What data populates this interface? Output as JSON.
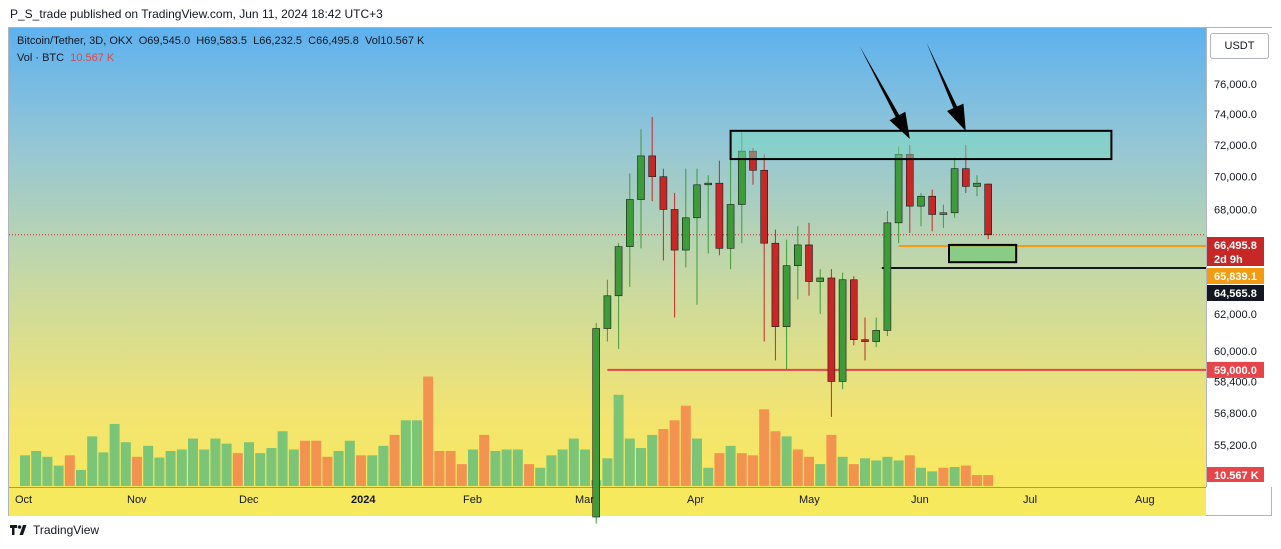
{
  "publisher": "P_S_trade published on TradingView.com, Jun 11, 2024 18:42 UTC+3",
  "legend": {
    "symbol": "Bitcoin/Tether, 3D, OKX",
    "open": "O69,545.0",
    "high": "H69,583.5",
    "low": "L66,232.5",
    "close": "C66,495.8",
    "vol": "Vol10.567 K",
    "vol_label": "Vol · BTC",
    "vol_value": "10.567 K"
  },
  "currency": "USDT",
  "brand": "TradingView",
  "colors": {
    "up": "#3e9b3a",
    "down": "#c62828",
    "vol_up": "#7cc576",
    "vol_down": "#f2934f",
    "vol_top": "#f08c3c",
    "level_red": "#e8454a",
    "level_orange": "#f39c12"
  },
  "chart_data": {
    "type": "candlestick",
    "y_scale": "log",
    "ylim": [
      54000,
      79000
    ],
    "y_ticks": [
      {
        "v": 76000,
        "label": "76,000.0"
      },
      {
        "v": 74000,
        "label": "74,000.0"
      },
      {
        "v": 72000,
        "label": "72,000.0"
      },
      {
        "v": 70000,
        "label": "70,000.0"
      },
      {
        "v": 68000,
        "label": "68,000.0"
      },
      {
        "v": 62000,
        "label": "62,000.0"
      },
      {
        "v": 60000,
        "label": "60,000.0"
      },
      {
        "v": 58400,
        "label": "58,400.0"
      },
      {
        "v": 56800,
        "label": "56,800.0"
      },
      {
        "v": 55200,
        "label": "55,200.0"
      }
    ],
    "x_ticks": [
      {
        "i": 0,
        "label": "Oct"
      },
      {
        "i": 10,
        "label": "Nov"
      },
      {
        "i": 20,
        "label": "Dec"
      },
      {
        "i": 30,
        "label": "2024"
      },
      {
        "i": 40,
        "label": "Feb"
      },
      {
        "i": 50,
        "label": "Mar"
      },
      {
        "i": 60,
        "label": "Apr"
      },
      {
        "i": 70,
        "label": "May"
      },
      {
        "i": 80,
        "label": "Jun"
      },
      {
        "i": 90,
        "label": "Jul"
      },
      {
        "i": 100,
        "label": "Aug"
      }
    ],
    "candles": [
      {
        "i": 51,
        "o": 51800,
        "h": 61500,
        "l": 51500,
        "c": 61200
      },
      {
        "i": 52,
        "o": 61200,
        "h": 63900,
        "l": 60500,
        "c": 63000
      },
      {
        "i": 53,
        "o": 63000,
        "h": 66000,
        "l": 60100,
        "c": 65800
      },
      {
        "i": 54,
        "o": 65800,
        "h": 70200,
        "l": 63500,
        "c": 68600
      },
      {
        "i": 55,
        "o": 68600,
        "h": 73000,
        "l": 65700,
        "c": 71300
      },
      {
        "i": 56,
        "o": 71300,
        "h": 73800,
        "l": 68500,
        "c": 70000
      },
      {
        "i": 57,
        "o": 70000,
        "h": 70500,
        "l": 65000,
        "c": 68000
      },
      {
        "i": 58,
        "o": 68000,
        "h": 69000,
        "l": 61800,
        "c": 65600
      },
      {
        "i": 59,
        "o": 65600,
        "h": 70500,
        "l": 64600,
        "c": 67500
      },
      {
        "i": 60,
        "o": 67500,
        "h": 70500,
        "l": 62500,
        "c": 69500
      },
      {
        "i": 61,
        "o": 69500,
        "h": 70100,
        "l": 65400,
        "c": 69600
      },
      {
        "i": 62,
        "o": 69600,
        "h": 71000,
        "l": 65300,
        "c": 65700
      },
      {
        "i": 63,
        "o": 65700,
        "h": 72000,
        "l": 64500,
        "c": 68300
      },
      {
        "i": 64,
        "o": 68300,
        "h": 72800,
        "l": 66000,
        "c": 71600
      },
      {
        "i": 65,
        "o": 71600,
        "h": 71800,
        "l": 69500,
        "c": 70400
      },
      {
        "i": 66,
        "o": 70400,
        "h": 71400,
        "l": 60500,
        "c": 66000
      },
      {
        "i": 67,
        "o": 66000,
        "h": 66800,
        "l": 59500,
        "c": 61300
      },
      {
        "i": 68,
        "o": 61300,
        "h": 66200,
        "l": 59000,
        "c": 64700
      },
      {
        "i": 69,
        "o": 64700,
        "h": 67000,
        "l": 62800,
        "c": 65900
      },
      {
        "i": 70,
        "o": 65900,
        "h": 67200,
        "l": 63000,
        "c": 63800
      },
      {
        "i": 71,
        "o": 63800,
        "h": 64500,
        "l": 62000,
        "c": 64000
      },
      {
        "i": 72,
        "o": 64000,
        "h": 64500,
        "l": 56600,
        "c": 58400
      },
      {
        "i": 73,
        "o": 58400,
        "h": 64300,
        "l": 58000,
        "c": 63900
      },
      {
        "i": 74,
        "o": 63900,
        "h": 64100,
        "l": 60300,
        "c": 60600
      },
      {
        "i": 75,
        "o": 60600,
        "h": 61800,
        "l": 59500,
        "c": 60500
      },
      {
        "i": 76,
        "o": 60500,
        "h": 61800,
        "l": 60200,
        "c": 61100
      },
      {
        "i": 77,
        "o": 61100,
        "h": 67900,
        "l": 60800,
        "c": 67200
      },
      {
        "i": 78,
        "o": 67200,
        "h": 71900,
        "l": 66000,
        "c": 71400
      },
      {
        "i": 79,
        "o": 71400,
        "h": 72000,
        "l": 66600,
        "c": 68200
      },
      {
        "i": 80,
        "o": 68200,
        "h": 69000,
        "l": 67000,
        "c": 68800
      },
      {
        "i": 81,
        "o": 68800,
        "h": 69200,
        "l": 66700,
        "c": 67700
      },
      {
        "i": 82,
        "o": 67700,
        "h": 68300,
        "l": 66900,
        "c": 67800
      },
      {
        "i": 83,
        "o": 67800,
        "h": 71200,
        "l": 67500,
        "c": 70500
      },
      {
        "i": 84,
        "o": 70500,
        "h": 72000,
        "l": 69000,
        "c": 69400
      },
      {
        "i": 85,
        "o": 69400,
        "h": 70100,
        "l": 68800,
        "c": 69600
      },
      {
        "i": 86,
        "o": 69545,
        "h": 69583,
        "l": 66232,
        "c": 66496
      }
    ],
    "volume_series": [
      {
        "i": 0,
        "v": 4.2,
        "d": "up"
      },
      {
        "i": 1,
        "v": 4.8,
        "d": "up"
      },
      {
        "i": 2,
        "v": 4.0,
        "d": "up"
      },
      {
        "i": 3,
        "v": 2.8,
        "d": "up"
      },
      {
        "i": 4,
        "v": 4.2,
        "d": "down"
      },
      {
        "i": 5,
        "v": 2.2,
        "d": "up"
      },
      {
        "i": 6,
        "v": 6.8,
        "d": "up"
      },
      {
        "i": 7,
        "v": 4.6,
        "d": "up"
      },
      {
        "i": 8,
        "v": 8.5,
        "d": "up"
      },
      {
        "i": 9,
        "v": 6.0,
        "d": "up"
      },
      {
        "i": 10,
        "v": 4.0,
        "d": "down"
      },
      {
        "i": 11,
        "v": 5.5,
        "d": "up"
      },
      {
        "i": 12,
        "v": 3.9,
        "d": "up"
      },
      {
        "i": 13,
        "v": 4.8,
        "d": "up"
      },
      {
        "i": 14,
        "v": 5.0,
        "d": "up"
      },
      {
        "i": 15,
        "v": 6.5,
        "d": "up"
      },
      {
        "i": 16,
        "v": 5.0,
        "d": "up"
      },
      {
        "i": 17,
        "v": 6.5,
        "d": "up"
      },
      {
        "i": 18,
        "v": 5.8,
        "d": "up"
      },
      {
        "i": 19,
        "v": 4.5,
        "d": "down"
      },
      {
        "i": 20,
        "v": 6.0,
        "d": "up"
      },
      {
        "i": 21,
        "v": 4.5,
        "d": "up"
      },
      {
        "i": 22,
        "v": 5.2,
        "d": "up"
      },
      {
        "i": 23,
        "v": 7.5,
        "d": "up"
      },
      {
        "i": 24,
        "v": 5.0,
        "d": "up"
      },
      {
        "i": 25,
        "v": 6.2,
        "d": "down"
      },
      {
        "i": 26,
        "v": 6.2,
        "d": "down"
      },
      {
        "i": 27,
        "v": 4.0,
        "d": "down"
      },
      {
        "i": 28,
        "v": 4.8,
        "d": "up"
      },
      {
        "i": 29,
        "v": 6.2,
        "d": "up"
      },
      {
        "i": 30,
        "v": 4.2,
        "d": "down"
      },
      {
        "i": 31,
        "v": 4.2,
        "d": "up"
      },
      {
        "i": 32,
        "v": 5.5,
        "d": "up"
      },
      {
        "i": 33,
        "v": 7.0,
        "d": "down"
      },
      {
        "i": 34,
        "v": 9.0,
        "d": "up"
      },
      {
        "i": 35,
        "v": 9.0,
        "d": "up"
      },
      {
        "i": 36,
        "v": 15.0,
        "d": "down"
      },
      {
        "i": 37,
        "v": 4.8,
        "d": "down"
      },
      {
        "i": 38,
        "v": 4.8,
        "d": "down"
      },
      {
        "i": 39,
        "v": 3.0,
        "d": "down"
      },
      {
        "i": 40,
        "v": 5.0,
        "d": "up"
      },
      {
        "i": 41,
        "v": 7.0,
        "d": "down"
      },
      {
        "i": 42,
        "v": 4.8,
        "d": "up"
      },
      {
        "i": 43,
        "v": 5.0,
        "d": "up"
      },
      {
        "i": 44,
        "v": 5.0,
        "d": "up"
      },
      {
        "i": 45,
        "v": 3.0,
        "d": "down"
      },
      {
        "i": 46,
        "v": 2.5,
        "d": "up"
      },
      {
        "i": 47,
        "v": 4.2,
        "d": "up"
      },
      {
        "i": 48,
        "v": 5.0,
        "d": "up"
      },
      {
        "i": 49,
        "v": 6.5,
        "d": "up"
      },
      {
        "i": 50,
        "v": 5.0,
        "d": "up"
      },
      {
        "i": 51,
        "v": 0.8,
        "d": "up"
      },
      {
        "i": 52,
        "v": 3.8,
        "d": "up"
      },
      {
        "i": 53,
        "v": 12.5,
        "d": "up"
      },
      {
        "i": 54,
        "v": 6.5,
        "d": "up"
      },
      {
        "i": 55,
        "v": 5.2,
        "d": "up"
      },
      {
        "i": 56,
        "v": 7.0,
        "d": "up"
      },
      {
        "i": 57,
        "v": 7.8,
        "d": "down"
      },
      {
        "i": 58,
        "v": 9.0,
        "d": "down"
      },
      {
        "i": 59,
        "v": 11.0,
        "d": "down"
      },
      {
        "i": 60,
        "v": 6.5,
        "d": "up"
      },
      {
        "i": 61,
        "v": 2.5,
        "d": "up"
      },
      {
        "i": 62,
        "v": 4.5,
        "d": "down"
      },
      {
        "i": 63,
        "v": 5.5,
        "d": "up"
      },
      {
        "i": 64,
        "v": 4.5,
        "d": "down"
      },
      {
        "i": 65,
        "v": 4.2,
        "d": "down"
      },
      {
        "i": 66,
        "v": 10.5,
        "d": "down"
      },
      {
        "i": 67,
        "v": 7.5,
        "d": "down"
      },
      {
        "i": 68,
        "v": 6.8,
        "d": "up"
      },
      {
        "i": 69,
        "v": 5.0,
        "d": "down"
      },
      {
        "i": 70,
        "v": 4.0,
        "d": "down"
      },
      {
        "i": 71,
        "v": 3.0,
        "d": "up"
      },
      {
        "i": 72,
        "v": 7.0,
        "d": "down"
      },
      {
        "i": 73,
        "v": 4.0,
        "d": "up"
      },
      {
        "i": 74,
        "v": 3.0,
        "d": "down"
      },
      {
        "i": 75,
        "v": 3.8,
        "d": "up"
      },
      {
        "i": 76,
        "v": 3.5,
        "d": "up"
      },
      {
        "i": 77,
        "v": 4.0,
        "d": "up"
      },
      {
        "i": 78,
        "v": 3.5,
        "d": "up"
      },
      {
        "i": 79,
        "v": 4.2,
        "d": "down"
      },
      {
        "i": 80,
        "v": 2.5,
        "d": "up"
      },
      {
        "i": 81,
        "v": 2.0,
        "d": "up"
      },
      {
        "i": 82,
        "v": 2.5,
        "d": "down"
      },
      {
        "i": 83,
        "v": 2.6,
        "d": "up"
      },
      {
        "i": 84,
        "v": 2.8,
        "d": "down"
      },
      {
        "i": 85,
        "v": 1.5,
        "d": "down"
      },
      {
        "i": 86,
        "v": 1.5,
        "d": "down"
      }
    ],
    "annotations": {
      "resistance_box": {
        "i0": 63.0,
        "i1": 97.0,
        "p_low": 71100,
        "p_high": 72900
      },
      "demand_box": {
        "i0": 82.5,
        "i1": 88.5,
        "p_low": 64900,
        "p_high": 65900
      },
      "orange_line": {
        "i0": 78.0,
        "i1": 108.0,
        "p": 65839
      },
      "black_line": {
        "i0": 76.5,
        "i1": 108.0,
        "p": 64566
      },
      "red_line": {
        "i0": 52.0,
        "i1": 108.0,
        "p": 59000
      },
      "current_dotted": {
        "p": 66496
      },
      "arrows": [
        {
          "x0i": 74.5,
          "y0p": 79300,
          "x1i": 79.0,
          "y1p": 72000
        },
        {
          "x0i": 80.5,
          "y0p": 79500,
          "x1i": 84.0,
          "y1p": 72500
        }
      ]
    },
    "price_labels": [
      {
        "p": 66496,
        "text": "66,495.8",
        "color": "#c62828"
      },
      {
        "p": 65839,
        "text": "65,839.1",
        "color": "#f39c12"
      },
      {
        "p": 64566,
        "text": "64,565.8",
        "color": "#131722"
      },
      {
        "p": 59000,
        "text": "59,000.0",
        "color": "#e8454a"
      }
    ],
    "countdown": "2d 9h",
    "volume_label": "10.567 K"
  }
}
